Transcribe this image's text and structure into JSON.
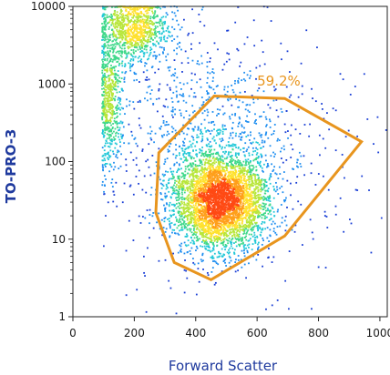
{
  "chart_data": {
    "type": "scatter",
    "plot_style": "density-dot-plot",
    "xlabel": "Forward Scatter",
    "ylabel": "TO-PRO-3",
    "xlim": [
      0,
      1024
    ],
    "ylim": [
      1,
      10000
    ],
    "y_scale": "log",
    "x_ticks": [
      0,
      200,
      400,
      600,
      800,
      1000
    ],
    "x_tick_labels": [
      "0",
      "200",
      "400",
      "600",
      "800",
      "1000"
    ],
    "y_ticks": [
      1,
      10,
      100,
      1000,
      10000
    ],
    "y_tick_labels": [
      "1",
      "10",
      "100",
      "1000",
      "10000"
    ],
    "grid": false,
    "density_palette": [
      "#1a3fd6",
      "#1f8ef0",
      "#22c8d8",
      "#3fd88a",
      "#b8e63a",
      "#ffe12e",
      "#ff9f1a",
      "#ff4a14"
    ],
    "populations": [
      {
        "x_mean": 480,
        "y_log_mean": 1.5,
        "x_sd": 80,
        "y_log_sd": 0.33,
        "weight": 0.6
      },
      {
        "x_mean": 200,
        "y_log_mean": 3.72,
        "x_sd": 60,
        "y_log_sd": 0.22,
        "weight": 0.17
      },
      {
        "x_mean": 120,
        "y_log_mean": 2.8,
        "x_sd": 22,
        "y_log_sd": 0.45,
        "weight": 0.09
      },
      {
        "x_mean": 420,
        "y_log_mean": 2.5,
        "x_sd": 160,
        "y_log_sd": 0.55,
        "weight": 0.09
      },
      {
        "x_mean": 550,
        "y_log_mean": 2.0,
        "x_sd": 250,
        "y_log_sd": 0.9,
        "weight": 0.05
      }
    ],
    "gate": {
      "label": "59.2%",
      "color": "#e8951e",
      "vertices": [
        [
          460,
          700
        ],
        [
          690,
          650
        ],
        [
          940,
          180
        ],
        [
          690,
          11
        ],
        [
          450,
          3
        ],
        [
          330,
          5
        ],
        [
          270,
          22
        ],
        [
          280,
          130
        ]
      ]
    }
  }
}
